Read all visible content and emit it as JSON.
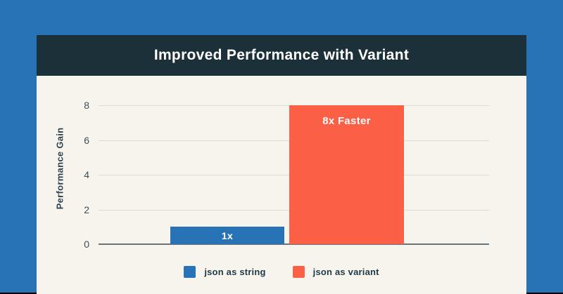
{
  "window": {
    "background": "#000000",
    "banner_color": "#2773B5"
  },
  "card": {
    "background": "#F7F4EE",
    "header": {
      "title": "Improved Performance with Variant",
      "background": "#1C3039",
      "text_color": "#FFFFFF"
    }
  },
  "chart_data": {
    "type": "bar",
    "title": "Improved Performance with Variant",
    "xlabel": "",
    "ylabel": "Performance Gain",
    "ylim": [
      0,
      8
    ],
    "yticks": [
      0,
      2,
      4,
      6,
      8
    ],
    "grid": true,
    "legend_position": "bottom",
    "categories": [
      "json as string",
      "json as variant"
    ],
    "series": [
      {
        "name": "json as string",
        "value": 1,
        "bar_label": "1x",
        "color": "#2773B5"
      },
      {
        "name": "json as variant",
        "value": 8,
        "bar_label": "8x Faster",
        "color": "#FB5F45"
      }
    ],
    "gridline_color": "#DCDAD4",
    "baseline_color": "#66747D",
    "tick_color": "#3E4E58"
  },
  "legend": {
    "items": [
      {
        "label": "json as string",
        "color": "#2773B5"
      },
      {
        "label": "json as variant",
        "color": "#FB5F45"
      }
    ]
  }
}
